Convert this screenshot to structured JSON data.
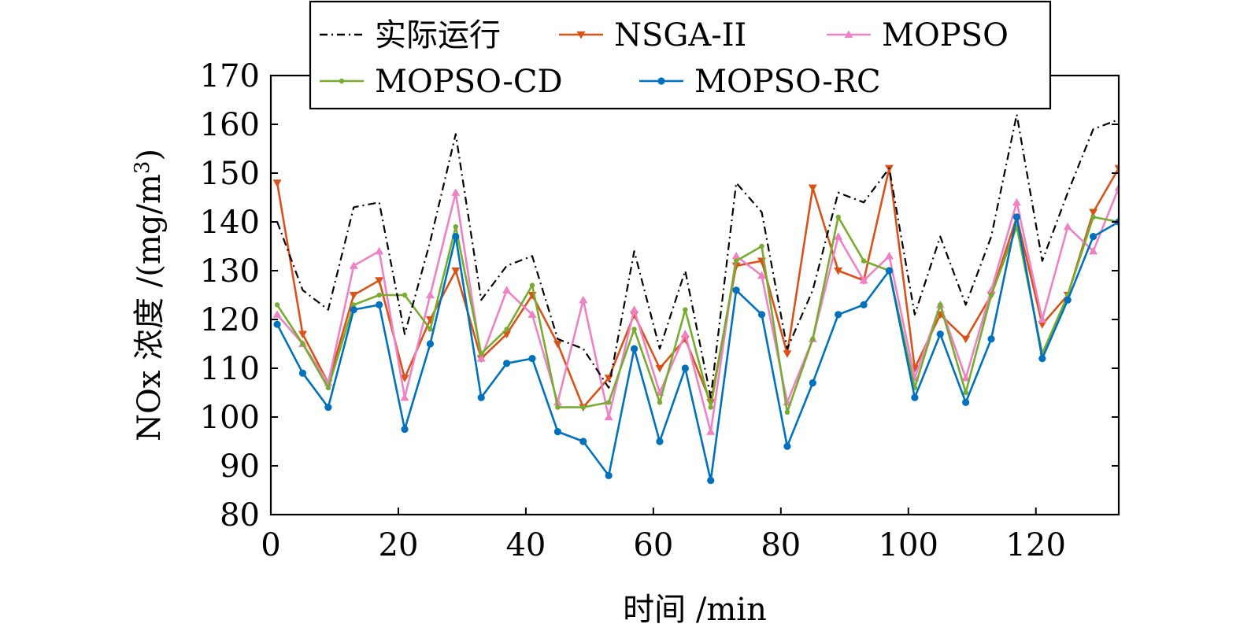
{
  "chart_data": {
    "type": "line",
    "xlabel": "时间 /min",
    "ylabel": "NOx 浓度 /(mg/m",
    "ylabel_sup": "3",
    "ylabel_close": ")",
    "xlim": [
      0,
      133
    ],
    "ylim": [
      80,
      170
    ],
    "xticks": [
      0,
      20,
      40,
      60,
      80,
      100,
      120
    ],
    "yticks": [
      80,
      90,
      100,
      110,
      120,
      130,
      140,
      150,
      160,
      170
    ],
    "grid": false,
    "legend": "top, outside, 3 columns",
    "x": [
      1,
      5,
      9,
      13,
      17,
      21,
      25,
      29,
      33,
      37,
      41,
      45,
      49,
      53,
      57,
      61,
      65,
      69,
      73,
      77,
      81,
      85,
      89,
      93,
      97,
      101,
      105,
      109,
      113,
      117,
      121,
      125,
      129,
      133
    ],
    "series": [
      {
        "name": "实际运行",
        "color": "#000000",
        "dash": "dashdot",
        "marker": "none",
        "values": [
          140,
          126,
          122,
          143,
          144,
          117,
          136,
          158,
          124,
          131,
          133,
          116,
          114,
          106,
          134,
          114,
          130,
          104,
          148,
          142,
          114,
          126,
          146,
          144,
          151,
          121,
          137,
          123,
          137,
          162,
          132,
          146,
          159,
          161
        ]
      },
      {
        "name": "NSGA-II",
        "color": "#D95319",
        "dash": "solid",
        "marker": "triangle-down",
        "values": [
          148,
          117,
          107,
          125,
          128,
          108,
          120,
          130,
          112,
          117,
          125,
          115,
          102,
          108,
          121,
          110,
          116,
          103,
          131,
          132,
          113,
          147,
          130,
          128,
          151,
          110,
          121,
          116,
          125,
          141,
          119,
          125,
          142,
          151
        ]
      },
      {
        "name": "MOPSO",
        "color": "#EE82C4",
        "dash": "solid",
        "marker": "triangle-up",
        "values": [
          121,
          115,
          107,
          131,
          134,
          104,
          125,
          146,
          112,
          126,
          121,
          103,
          124,
          100,
          122,
          105,
          117,
          97,
          133,
          129,
          103,
          116,
          137,
          128,
          133,
          108,
          123,
          108,
          126,
          144,
          120,
          139,
          134,
          147
        ]
      },
      {
        "name": "MOPSO-CD",
        "color": "#77AC30",
        "dash": "solid",
        "marker": "circle-small",
        "values": [
          123,
          115,
          106,
          123,
          125,
          125,
          118,
          139,
          113,
          118,
          127,
          102,
          102,
          103,
          118,
          103,
          122,
          102,
          132,
          135,
          101,
          116,
          141,
          132,
          130,
          106,
          123,
          105,
          125,
          139,
          113,
          125,
          141,
          140
        ]
      },
      {
        "name": "MOPSO-RC",
        "color": "#0072BD",
        "dash": "solid",
        "marker": "circle",
        "values": [
          119,
          109,
          102,
          122,
          123,
          97.5,
          115,
          137,
          104,
          111,
          112,
          97,
          95,
          88,
          114,
          95,
          110,
          87,
          126,
          121,
          94,
          107,
          121,
          123,
          130,
          104,
          117,
          103,
          116,
          141,
          112,
          124,
          137,
          140
        ]
      }
    ]
  }
}
